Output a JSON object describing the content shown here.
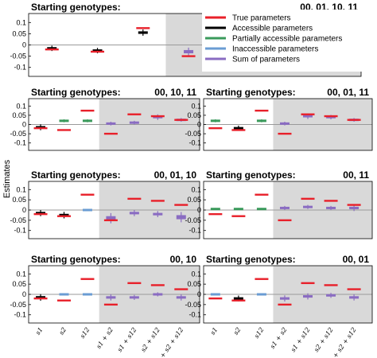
{
  "chart_data": {
    "type": "scatter",
    "ylabel": "Estimates",
    "title_prefix": "Starting genotypes:",
    "x_tick_labels": [
      "s1",
      "s2",
      "s12",
      "s1 + s2",
      "s1 + s12",
      "s2 + s12",
      "s1 + s2 + s12"
    ],
    "y_ticks": [
      -0.1,
      -0.05,
      0,
      0.05,
      0.1
    ],
    "y_tick_labels": [
      "-0.1",
      "-0.05",
      "0",
      "0.05",
      "0.1"
    ],
    "ylim": [
      -0.14,
      0.14
    ],
    "shaded_from_category": 3,
    "legend": {
      "placement": "top-right",
      "entries": [
        {
          "key": "true",
          "label": "True parameters",
          "color": "#e8202a"
        },
        {
          "key": "acc",
          "label": "Accessible parameters",
          "color": "#000000"
        },
        {
          "key": "part",
          "label": "Partially accessible parameters",
          "color": "#3a9a5b"
        },
        {
          "key": "inacc",
          "label": "Inaccessible parameters",
          "color": "#6a9cd3"
        },
        {
          "key": "sum",
          "label": "Sum of parameters",
          "color": "#8a6cc2"
        }
      ]
    },
    "true_values": [
      -0.02,
      -0.03,
      0.075,
      -0.05,
      0.055,
      0.045,
      0.025
    ],
    "panels": [
      {
        "genotypes": "00, 01, 10, 11",
        "estimates": [
          {
            "type": "acc",
            "value": -0.015,
            "err": 0.012
          },
          {
            "type": "acc",
            "value": -0.025,
            "err": 0.012
          },
          {
            "type": "acc",
            "value": 0.055,
            "err": 0.014
          },
          {
            "type": "sum",
            "value": -0.03,
            "err": 0.018
          },
          {
            "type": "sum",
            "value": 0.05,
            "err": 0.015
          },
          {
            "type": "sum",
            "value": 0.04,
            "err": 0.015
          },
          {
            "type": "sum",
            "value": 0.025,
            "err": 0.01
          }
        ]
      },
      {
        "genotypes": "00, 10, 11",
        "estimates": [
          {
            "type": "acc",
            "value": -0.015,
            "err": 0.016
          },
          {
            "type": "part",
            "value": 0.02,
            "err": 0.008
          },
          {
            "type": "part",
            "value": 0.02,
            "err": 0.008
          },
          {
            "type": "sum",
            "value": 0.005,
            "err": 0.01
          },
          {
            "type": "sum",
            "value": 0.01,
            "err": 0.01
          },
          {
            "type": "sum",
            "value": 0.04,
            "err": 0.015
          },
          {
            "type": "sum",
            "value": 0.025,
            "err": 0.01
          }
        ]
      },
      {
        "genotypes": "00, 01, 11",
        "estimates": [
          {
            "type": "part",
            "value": 0.02,
            "err": 0.008
          },
          {
            "type": "acc",
            "value": -0.02,
            "err": 0.014
          },
          {
            "type": "part",
            "value": 0.02,
            "err": 0.008
          },
          {
            "type": "sum",
            "value": 0.005,
            "err": 0.01
          },
          {
            "type": "sum",
            "value": 0.045,
            "err": 0.015
          },
          {
            "type": "sum",
            "value": 0.04,
            "err": 0.012
          },
          {
            "type": "sum",
            "value": 0.025,
            "err": 0.01
          }
        ]
      },
      {
        "genotypes": "00, 01, 10",
        "estimates": [
          {
            "type": "acc",
            "value": -0.015,
            "err": 0.015
          },
          {
            "type": "acc",
            "value": -0.025,
            "err": 0.016
          },
          {
            "type": "inacc",
            "value": 0.0,
            "err": 0.004
          },
          {
            "type": "sum",
            "value": -0.04,
            "err": 0.025
          },
          {
            "type": "sum",
            "value": -0.015,
            "err": 0.015
          },
          {
            "type": "sum",
            "value": -0.02,
            "err": 0.015
          },
          {
            "type": "sum",
            "value": -0.035,
            "err": 0.025
          }
        ]
      },
      {
        "genotypes": "00, 11",
        "estimates": [
          {
            "type": "part",
            "value": 0.005,
            "err": 0.005
          },
          {
            "type": "part",
            "value": 0.005,
            "err": 0.005
          },
          {
            "type": "part",
            "value": 0.005,
            "err": 0.005
          },
          {
            "type": "sum",
            "value": 0.01,
            "err": 0.01
          },
          {
            "type": "sum",
            "value": 0.015,
            "err": 0.01
          },
          {
            "type": "sum",
            "value": 0.01,
            "err": 0.01
          },
          {
            "type": "sum",
            "value": 0.01,
            "err": 0.015
          }
        ]
      },
      {
        "genotypes": "00, 10",
        "estimates": [
          {
            "type": "acc",
            "value": -0.015,
            "err": 0.016
          },
          {
            "type": "inacc",
            "value": 0.0,
            "err": 0.004
          },
          {
            "type": "inacc",
            "value": 0.0,
            "err": 0.004
          },
          {
            "type": "sum",
            "value": -0.015,
            "err": 0.015
          },
          {
            "type": "sum",
            "value": -0.015,
            "err": 0.012
          },
          {
            "type": "sum",
            "value": 0.0,
            "err": 0.01
          },
          {
            "type": "sum",
            "value": -0.015,
            "err": 0.015
          }
        ]
      },
      {
        "genotypes": "00, 01",
        "estimates": [
          {
            "type": "inacc",
            "value": 0.0,
            "err": 0.004
          },
          {
            "type": "acc",
            "value": -0.02,
            "err": 0.014
          },
          {
            "type": "inacc",
            "value": 0.0,
            "err": 0.004
          },
          {
            "type": "sum",
            "value": -0.02,
            "err": 0.015
          },
          {
            "type": "sum",
            "value": -0.01,
            "err": 0.015
          },
          {
            "type": "sum",
            "value": -0.005,
            "err": 0.012
          },
          {
            "type": "sum",
            "value": -0.015,
            "err": 0.015
          }
        ]
      }
    ]
  }
}
